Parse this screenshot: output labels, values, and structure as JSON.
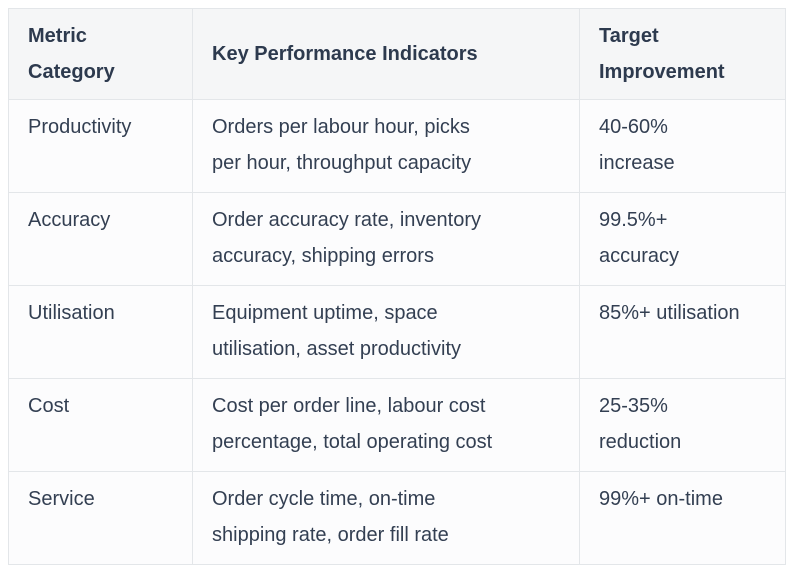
{
  "table": {
    "columns": [
      {
        "label": "Metric\nCategory"
      },
      {
        "label": "Key Performance Indicators"
      },
      {
        "label": "Target\nImprovement"
      }
    ],
    "rows": [
      {
        "category": "Productivity",
        "kpis": "Orders per labour hour, picks\nper hour, throughput capacity",
        "target": "40-60%\nincrease"
      },
      {
        "category": "Accuracy",
        "kpis": "Order accuracy rate, inventory\naccuracy, shipping errors",
        "target": "99.5%+\naccuracy"
      },
      {
        "category": "Utilisation",
        "kpis": "Equipment uptime, space\nutilisation, asset productivity",
        "target": "85%+ utilisation"
      },
      {
        "category": "Cost",
        "kpis": "Cost per order line, labour cost\npercentage, total operating cost",
        "target": "25-35%\nreduction"
      },
      {
        "category": "Service",
        "kpis": "Order cycle time, on-time\nshipping rate, order fill rate",
        "target": "99%+ on-time"
      }
    ],
    "colors": {
      "header_bg": "#f5f6f7",
      "body_bg": "#fcfcfd",
      "border": "#e3e6e9",
      "header_text": "#2d3a4e",
      "body_text": "#333f52"
    }
  }
}
